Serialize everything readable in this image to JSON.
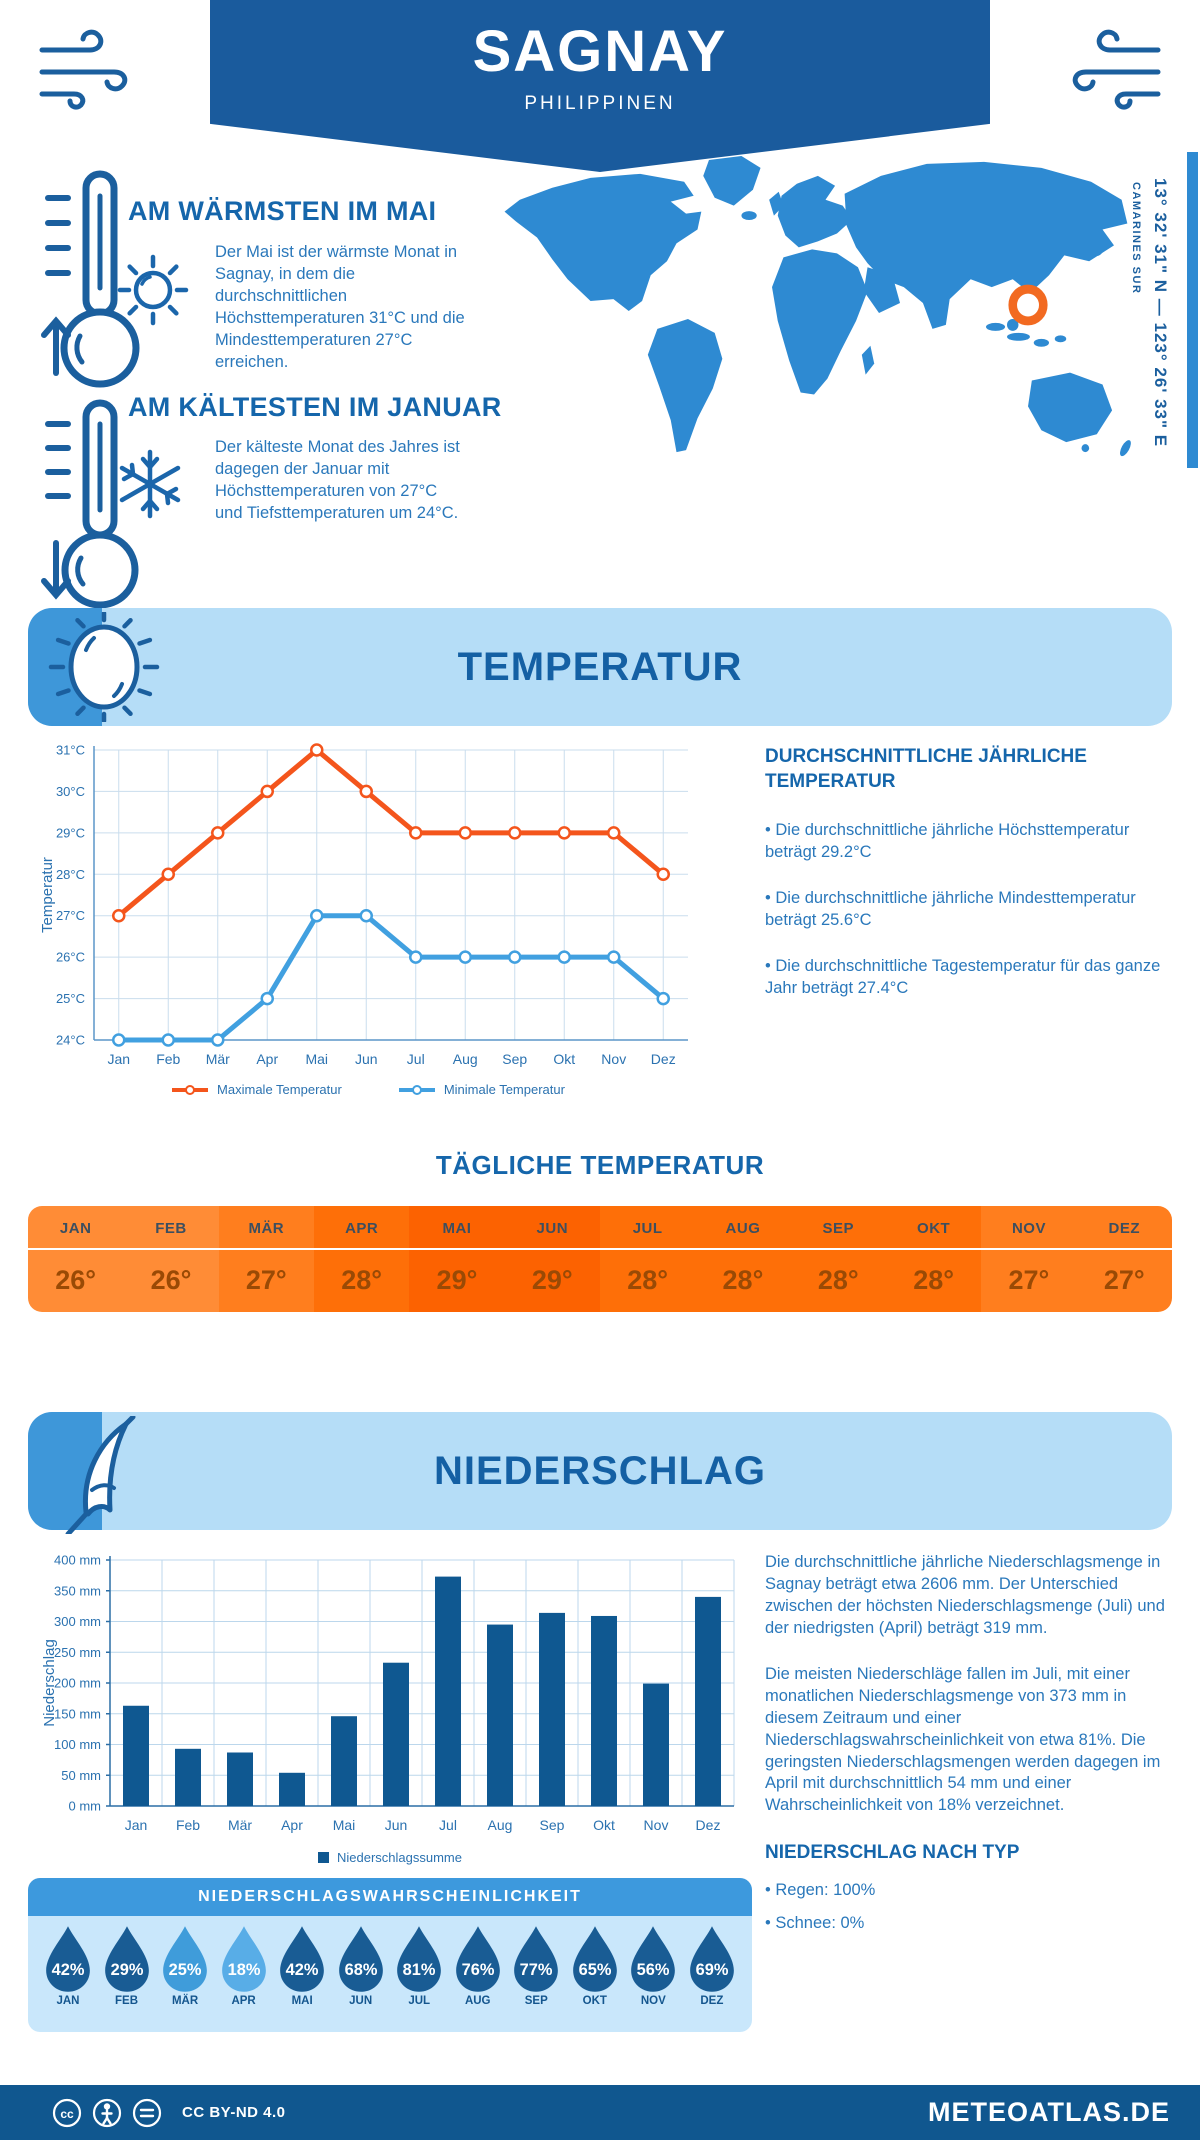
{
  "colors": {
    "primary_dark": "#1a5b9d",
    "heading_blue": "#1566ab",
    "text_blue": "#2a78bb",
    "banner_light": "#b5ddf7",
    "banner_wedge": "#3e97d9",
    "map_blue": "#2e8ad2",
    "marker_orange": "#f26a21",
    "max_line_orange": "#f4551c",
    "min_line_blue": "#41a0e0",
    "bar_blue": "#0f5891",
    "footer_blue": "#10578f"
  },
  "header": {
    "title": "SAGNAY",
    "subtitle": "PHILIPPINEN"
  },
  "warmest": {
    "title": "AM WÄRMSTEN IM MAI",
    "text": "Der Mai ist der wärmste Monat in Sagnay, in dem die durchschnittlichen Höchsttemperaturen 31°C und die Mindesttemperaturen 27°C erreichen."
  },
  "coldest": {
    "title": "AM KÄLTESTEN IM JANUAR",
    "text": "Der kälteste Monat des Jahres ist dagegen der Januar mit Höchsttemperaturen von 27°C und Tiefsttemperaturen um 24°C."
  },
  "location": {
    "coordinates": "13° 32' 31\" N — 123° 26' 33\" E",
    "region": "CAMARINES SUR"
  },
  "temperature_section": {
    "title": "TEMPERATUR"
  },
  "annual_temp": {
    "title": "DURCHSCHNITTLICHE JÄHRLICHE TEMPERATUR",
    "bullets": [
      "• Die durchschnittliche jährliche Höchsttemperatur beträgt 29.2°C",
      "• Die durchschnittliche jährliche Mindesttemperatur beträgt 25.6°C",
      "• Die durchschnittliche Tagestemperatur für das ganze Jahr beträgt 27.4°C"
    ]
  },
  "daily_temp": {
    "title": "TÄGLICHE TEMPERATUR",
    "months": [
      "JAN",
      "FEB",
      "MÄR",
      "APR",
      "MAI",
      "JUN",
      "JUL",
      "AUG",
      "SEP",
      "OKT",
      "NOV",
      "DEZ"
    ],
    "values": [
      "26°",
      "26°",
      "27°",
      "28°",
      "29°",
      "29°",
      "28°",
      "28°",
      "28°",
      "28°",
      "27°",
      "27°"
    ],
    "cell_colors": {
      "26°": "#ff8c36",
      "27°": "#ff7e1e",
      "28°": "#fe6f08",
      "29°": "#fc6201"
    }
  },
  "precipitation_section": {
    "title": "NIEDERSCHLAG"
  },
  "precip_text": {
    "para1": "Die durchschnittliche jährliche Niederschlagsmenge in Sagnay beträgt etwa 2606 mm. Der Unterschied zwischen der höchsten Niederschlagsmenge (Juli) und der niedrigsten (April) beträgt 319 mm.",
    "para2": "Die meisten Niederschläge fallen im Juli, mit einer monatlichen Niederschlagsmenge von 373 mm in diesem Zeitraum und einer Niederschlagswahrscheinlichkeit von etwa 81%. Die geringsten Niederschlagsmengen werden dagegen im April mit durchschnittlich 54 mm und einer Wahrscheinlichkeit von 18% verzeichnet.",
    "type_title": "NIEDERSCHLAG NACH TYP",
    "types": [
      "• Regen: 100%",
      "• Schnee: 0%"
    ]
  },
  "precip_probability": {
    "title": "NIEDERSCHLAGSWAHRSCHEINLICHKEIT",
    "drops": [
      {
        "month": "JAN",
        "value": "42%",
        "color": "#195c94"
      },
      {
        "month": "FEB",
        "value": "29%",
        "color": "#195c94"
      },
      {
        "month": "MÄR",
        "value": "25%",
        "color": "#3f9cda"
      },
      {
        "month": "APR",
        "value": "18%",
        "color": "#58ade7"
      },
      {
        "month": "MAI",
        "value": "42%",
        "color": "#195c94"
      },
      {
        "month": "JUN",
        "value": "68%",
        "color": "#195c94"
      },
      {
        "month": "JUL",
        "value": "81%",
        "color": "#195c94"
      },
      {
        "month": "AUG",
        "value": "76%",
        "color": "#195c94"
      },
      {
        "month": "SEP",
        "value": "77%",
        "color": "#195c94"
      },
      {
        "month": "OKT",
        "value": "65%",
        "color": "#195c94"
      },
      {
        "month": "NOV",
        "value": "56%",
        "color": "#195c94"
      },
      {
        "month": "DEZ",
        "value": "69%",
        "color": "#195c94"
      }
    ]
  },
  "footer": {
    "license": "CC BY-ND 4.0",
    "brand": "METEOATLAS.DE"
  },
  "chart_data": [
    {
      "type": "line",
      "title": "Monatliche Höchst- und Mindesttemperaturen",
      "categories": [
        "Jan",
        "Feb",
        "Mär",
        "Apr",
        "Mai",
        "Jun",
        "Jul",
        "Aug",
        "Sep",
        "Okt",
        "Nov",
        "Dez"
      ],
      "series": [
        {
          "name": "Maximale Temperatur",
          "color": "#f4551c",
          "values": [
            27,
            28,
            29,
            30,
            31,
            30,
            29,
            29,
            29,
            29,
            29,
            28
          ]
        },
        {
          "name": "Minimale Temperatur",
          "color": "#41a0e0",
          "values": [
            24,
            24,
            24,
            25,
            27,
            27,
            26,
            26,
            26,
            26,
            26,
            25
          ]
        }
      ],
      "xlabel": "",
      "ylabel": "Temperatur",
      "ylim": [
        24,
        31
      ],
      "ytick_step": 1,
      "ytick_suffix": "°C",
      "grid": true,
      "legend_position": "bottom"
    },
    {
      "type": "bar",
      "title": "Monatliche Niederschlagssumme",
      "categories": [
        "Jan",
        "Feb",
        "Mär",
        "Apr",
        "Mai",
        "Jun",
        "Jul",
        "Aug",
        "Sep",
        "Okt",
        "Nov",
        "Dez"
      ],
      "values": [
        163,
        93,
        87,
        54,
        146,
        233,
        373,
        295,
        314,
        309,
        199,
        340
      ],
      "xlabel": "",
      "ylabel": "Niederschlag",
      "ylim": [
        0,
        400
      ],
      "ytick_step": 50,
      "ytick_suffix": " mm",
      "legend": "Niederschlagssumme",
      "bar_color": "#0f5891",
      "grid": true
    }
  ]
}
